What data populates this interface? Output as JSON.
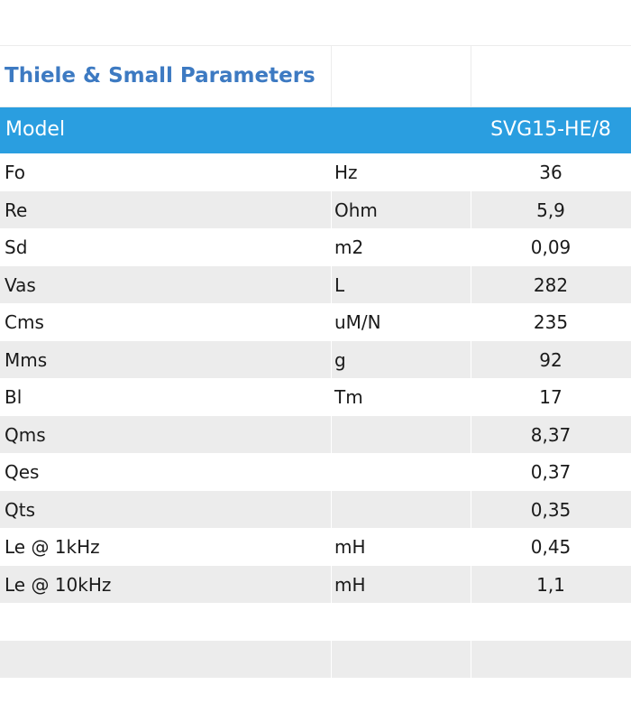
{
  "title": "Thiele & Small Parameters",
  "header": {
    "model_label": "Model",
    "model_value": "SVG15-HE/8"
  },
  "rows": [
    {
      "param": "Fo",
      "unit": "Hz",
      "value": "36"
    },
    {
      "param": "Re",
      "unit": "Ohm",
      "value": "5,9"
    },
    {
      "param": "Sd",
      "unit": "m2",
      "value": "0,09"
    },
    {
      "param": "Vas",
      "unit": "L",
      "value": "282"
    },
    {
      "param": "Cms",
      "unit": "uM/N",
      "value": "235"
    },
    {
      "param": "Mms",
      "unit": "g",
      "value": "92"
    },
    {
      "param": "Bl",
      "unit": "Tm",
      "value": "17"
    },
    {
      "param": "Qms",
      "unit": "",
      "value": "8,37"
    },
    {
      "param": "Qes",
      "unit": "",
      "value": "0,37"
    },
    {
      "param": "Qts",
      "unit": "",
      "value": "0,35"
    },
    {
      "param": "Le @ 1kHz",
      "unit": "mH",
      "value": "0,45"
    },
    {
      "param": "Le @ 10kHz",
      "unit": "mH",
      "value": "1,1"
    },
    {
      "param": "",
      "unit": "",
      "value": ""
    },
    {
      "param": "",
      "unit": "",
      "value": ""
    }
  ],
  "colors": {
    "title": "#3d7ac2",
    "header_bg": "#2a9ee0",
    "stripe": "#ececec"
  }
}
